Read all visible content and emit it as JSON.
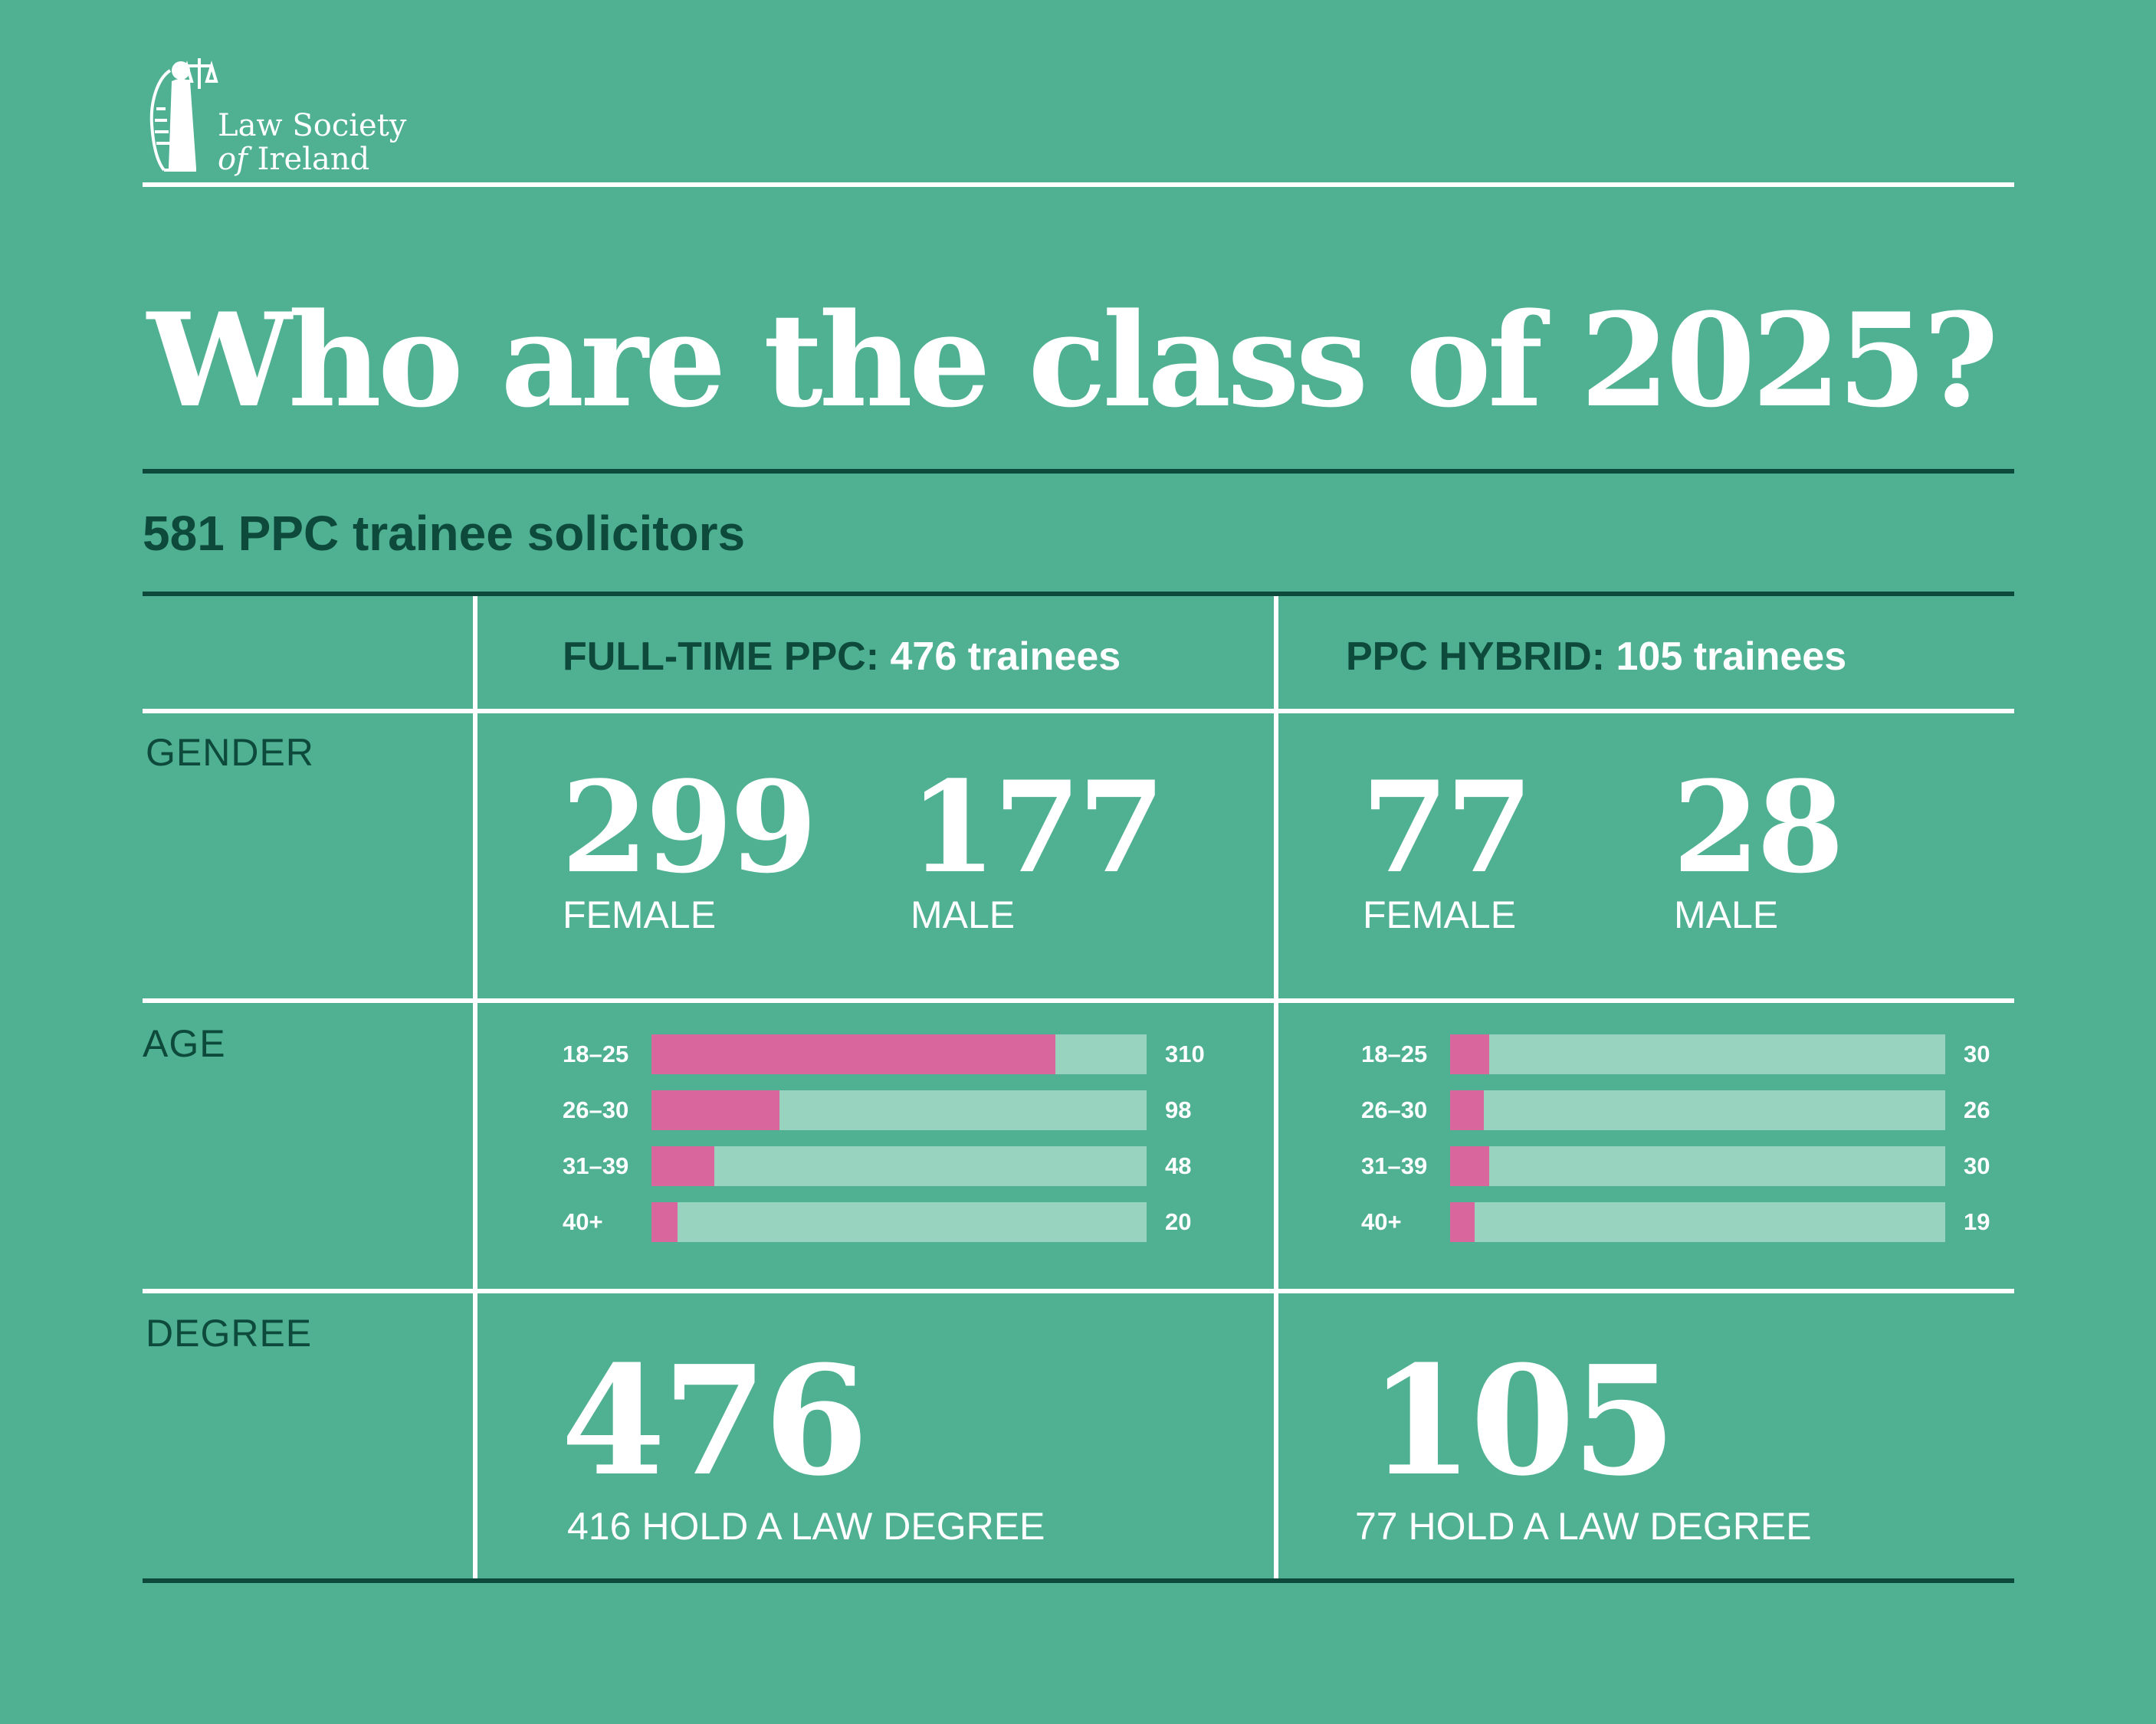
{
  "logo": {
    "line1": "Law Society",
    "line2_prefix": "of",
    "line2_suffix": "Ireland"
  },
  "title": "Who are the class of 2025?",
  "subtitle": "581 PPC trainee solicitors",
  "columns": [
    {
      "label": "FULL-TIME PPC:",
      "value": "476 trainees"
    },
    {
      "label": "PPC HYBRID:",
      "value": "105 trainees"
    }
  ],
  "rows": {
    "gender": "GENDER",
    "age": "AGE",
    "degree": "DEGREE"
  },
  "gender": [
    {
      "female": "299",
      "female_label": "FEMALE",
      "male": "177",
      "male_label": "MALE"
    },
    {
      "female": "77",
      "female_label": "FEMALE",
      "male": "28",
      "male_label": "MALE"
    }
  ],
  "degree": [
    {
      "total": "476",
      "caption": "416 HOLD A LAW DEGREE"
    },
    {
      "total": "105",
      "caption": "77 HOLD A LAW DEGREE"
    }
  ],
  "colors": {
    "background": "#4fb191",
    "accent": "#d9679e",
    "track": "#97d3bf",
    "dark_text": "#0e4a3c"
  },
  "chart_data": [
    {
      "type": "bar",
      "orientation": "horizontal",
      "categories": [
        "18–25",
        "26–30",
        "31–39",
        "40+"
      ],
      "values": [
        310,
        98,
        48,
        20
      ],
      "xlim": [
        0,
        380
      ],
      "total": 476
    },
    {
      "type": "bar",
      "orientation": "horizontal",
      "categories": [
        "18–25",
        "26–30",
        "31–39",
        "40+"
      ],
      "values": [
        30,
        26,
        30,
        19
      ],
      "xlim": [
        0,
        380
      ],
      "total": 105
    }
  ]
}
